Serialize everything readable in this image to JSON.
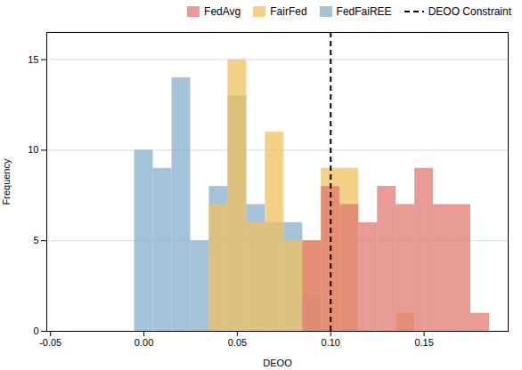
{
  "chart_data": {
    "type": "histogram",
    "xlabel": "DEOO",
    "ylabel": "Frequency",
    "xlim": [
      -0.052,
      0.195
    ],
    "ylim": [
      0,
      16.5
    ],
    "xticks": [
      {
        "value": -0.05,
        "label": "-0.05"
      },
      {
        "value": 0.0,
        "label": "0.00"
      },
      {
        "value": 0.05,
        "label": "0.05"
      },
      {
        "value": 0.1,
        "label": "0.10"
      },
      {
        "value": 0.15,
        "label": "0.15"
      }
    ],
    "yticks": [
      0,
      5,
      10,
      15
    ],
    "grid": "y",
    "legend": "upper right",
    "bins": [
      -0.005,
      0.005,
      0.015,
      0.025,
      0.035,
      0.045,
      0.055,
      0.065,
      0.075,
      0.085,
      0.095,
      0.105,
      0.115,
      0.125,
      0.135,
      0.145,
      0.155,
      0.165,
      0.175,
      0.185,
      0.195
    ],
    "series": [
      {
        "name": "FedFaiREE",
        "color": "#85AECB",
        "values": [
          10,
          9,
          14,
          5,
          8,
          13,
          7,
          6,
          6,
          2,
          0,
          0,
          0,
          0,
          0,
          0,
          0,
          0,
          0,
          0
        ]
      },
      {
        "name": "FairFed",
        "color": "#F0C060",
        "values": [
          0,
          0,
          0,
          0,
          7,
          15,
          6,
          11,
          5,
          5,
          9,
          9,
          0,
          0,
          1,
          0,
          0,
          0,
          0,
          0
        ]
      },
      {
        "name": "FedAvg",
        "color": "#E07870",
        "values": [
          0,
          0,
          0,
          0,
          0,
          0,
          0,
          0,
          0,
          5,
          8,
          7,
          6,
          8,
          7,
          9,
          7,
          7,
          1,
          0
        ]
      }
    ],
    "vlines": [
      {
        "x": 0.1,
        "name": "DEOO Constraint",
        "color": "black",
        "line_style": "dashed"
      }
    ]
  }
}
